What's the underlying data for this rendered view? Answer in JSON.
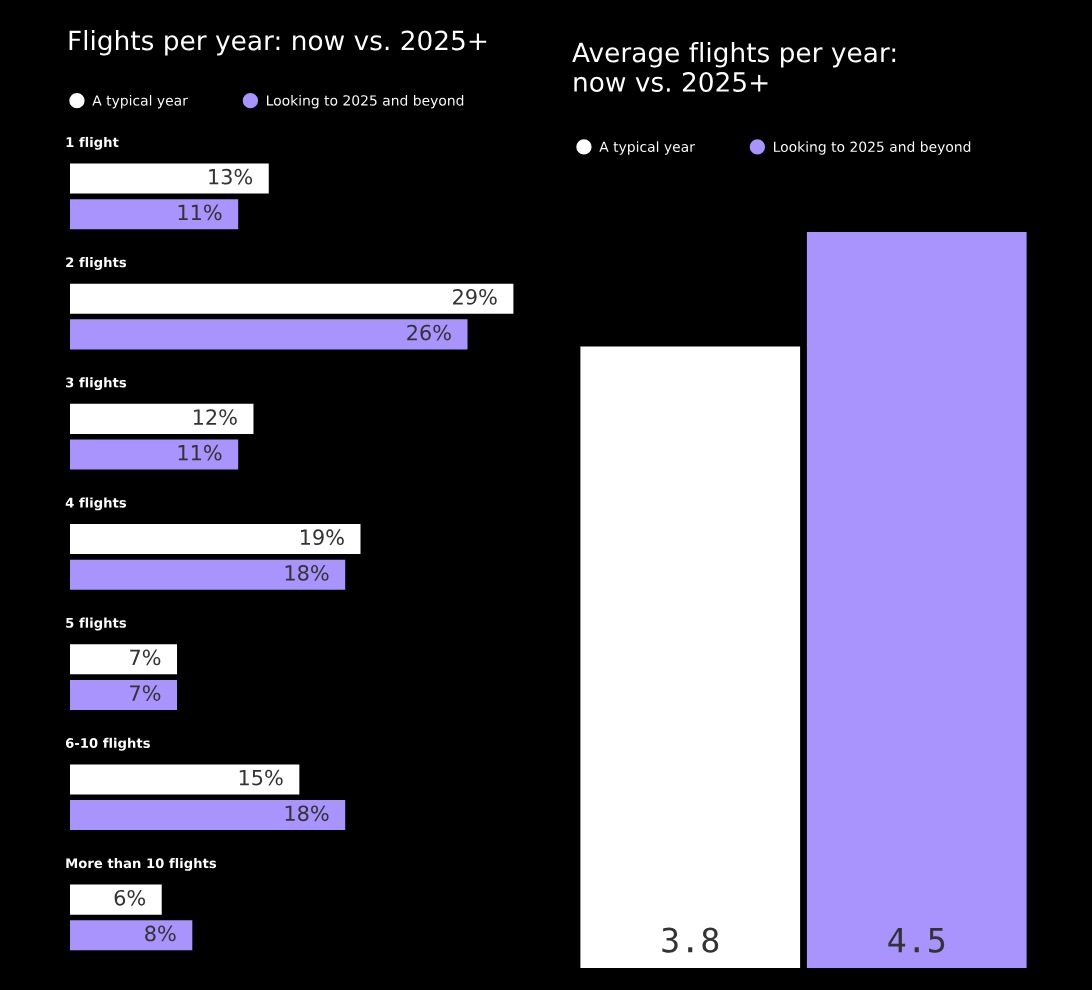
{
  "chart_data": [
    {
      "type": "bar",
      "orientation": "horizontal",
      "title": "Flights per year: now vs. 2025+",
      "categories": [
        "1 flight",
        "2 flights",
        "3 flights",
        "4 flights",
        "5 flights",
        "6-10 flights",
        "More than 10 flights"
      ],
      "series": [
        {
          "name": "A typical year",
          "color": "#ffffff",
          "values": [
            13,
            29,
            12,
            19,
            7,
            15,
            6
          ],
          "value_labels": [
            "13%",
            "29%",
            "12%",
            "19%",
            "7%",
            "15%",
            "6%"
          ]
        },
        {
          "name": "Looking to 2025 and beyond",
          "color": "#a994fd",
          "values": [
            11,
            26,
            11,
            18,
            7,
            18,
            8
          ],
          "value_labels": [
            "11%",
            "26%",
            "11%",
            "18%",
            "7%",
            "18%",
            "8%"
          ]
        }
      ],
      "legend": "top left",
      "tick_labels": "y"
    },
    {
      "type": "bar",
      "title": "Average flights per year:\nnow vs. 2025+",
      "categories": [
        null
      ],
      "series": [
        {
          "name": "A typical year",
          "color": "#ffffff",
          "values": [
            3.8
          ]
        },
        {
          "name": "Looking to 2025 and beyond",
          "color": "#a994fd",
          "values": [
            4.5
          ]
        }
      ],
      "data_labels": true,
      "legend": "top left",
      "tick_labels": false
    }
  ]
}
